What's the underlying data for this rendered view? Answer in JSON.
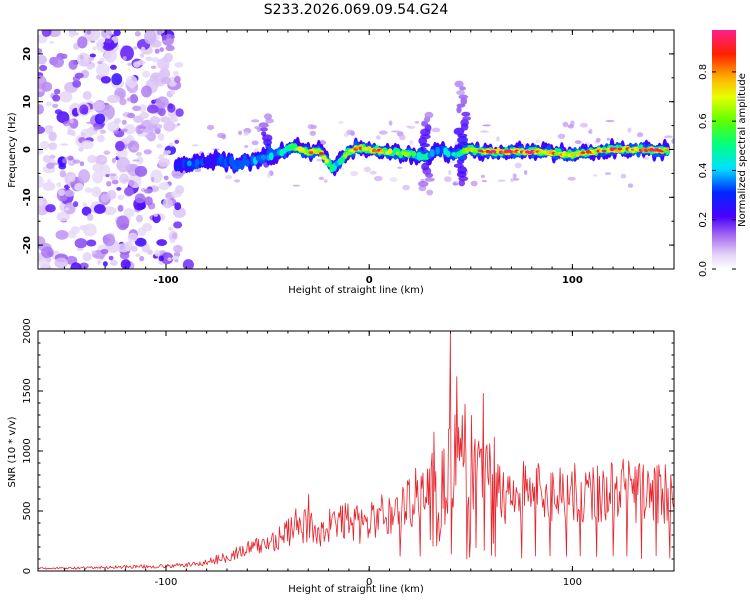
{
  "title": "S233.2026.069.09.54.G24",
  "chart_data": [
    {
      "type": "heatmap",
      "xlabel": "Height of straight line (km)",
      "ylabel": "Frequency (Hz)",
      "xlim": [
        -163,
        150
      ],
      "ylim": [
        -25,
        25
      ],
      "xticks": [
        "-100",
        "0",
        "100"
      ],
      "xtick_values": [
        -100,
        0,
        100
      ],
      "yticks": [
        "20",
        "10",
        "0",
        "-10",
        "-20"
      ],
      "ytick_values": [
        20,
        10,
        0,
        -10,
        -20
      ],
      "colorbar": {
        "label": "Normalized spectral amplitude",
        "range": [
          0,
          0.97
        ],
        "ticks": [
          "0.0",
          "0.2",
          "0.4",
          "0.6",
          "0.8"
        ],
        "tick_values": [
          0,
          0.2,
          0.4,
          0.6,
          0.8
        ]
      },
      "noise_region_x": [
        -163,
        -93
      ],
      "signal_band": [
        {
          "x": -95,
          "f": -3.5,
          "amp": 0.25
        },
        {
          "x": -85,
          "f": -3.0,
          "amp": 0.35
        },
        {
          "x": -75,
          "f": -2.0,
          "amp": 0.3
        },
        {
          "x": -65,
          "f": -3.0,
          "amp": 0.35
        },
        {
          "x": -55,
          "f": -2.0,
          "amp": 0.35
        },
        {
          "x": -45,
          "f": -1.0,
          "amp": 0.4
        },
        {
          "x": -38,
          "f": 0.5,
          "amp": 0.45
        },
        {
          "x": -30,
          "f": -0.5,
          "amp": 0.75
        },
        {
          "x": -24,
          "f": -0.5,
          "amp": 0.85
        },
        {
          "x": -18,
          "f": -4.0,
          "amp": 0.45
        },
        {
          "x": -10,
          "f": -0.5,
          "amp": 0.6
        },
        {
          "x": -5,
          "f": 0.5,
          "amp": 0.85
        },
        {
          "x": 0,
          "f": 0.0,
          "amp": 0.9
        },
        {
          "x": 10,
          "f": -0.5,
          "amp": 0.6
        },
        {
          "x": 20,
          "f": -1.0,
          "amp": 0.55
        },
        {
          "x": 28,
          "f": -1.5,
          "amp": 0.45
        },
        {
          "x": 35,
          "f": 0.0,
          "amp": 0.35
        },
        {
          "x": 42,
          "f": -1.0,
          "amp": 0.4
        },
        {
          "x": 50,
          "f": 0.0,
          "amp": 0.7
        },
        {
          "x": 60,
          "f": -0.5,
          "amp": 0.9
        },
        {
          "x": 70,
          "f": -0.5,
          "amp": 0.95
        },
        {
          "x": 80,
          "f": -0.5,
          "amp": 0.9
        },
        {
          "x": 88,
          "f": -0.5,
          "amp": 0.85
        },
        {
          "x": 95,
          "f": -1.0,
          "amp": 0.75
        },
        {
          "x": 102,
          "f": -1.0,
          "amp": 0.8
        },
        {
          "x": 110,
          "f": -0.5,
          "amp": 0.75
        },
        {
          "x": 118,
          "f": 0.0,
          "amp": 0.8
        },
        {
          "x": 126,
          "f": 0.0,
          "amp": 0.85
        },
        {
          "x": 135,
          "f": 0.0,
          "amp": 0.9
        },
        {
          "x": 142,
          "f": -0.2,
          "amp": 0.95
        },
        {
          "x": 148,
          "f": -0.2,
          "amp": 0.75
        }
      ],
      "vertical_features": [
        {
          "x": -50,
          "f_range": [
            -3,
            7
          ]
        },
        {
          "x": 28,
          "f_range": [
            -9,
            8
          ]
        },
        {
          "x": 46,
          "f_range": [
            -7,
            14
          ]
        }
      ]
    },
    {
      "type": "line",
      "xlabel": "Height of straight line (km)",
      "ylabel": "SNR (10 * v/v)",
      "xlim": [
        -163,
        150
      ],
      "ylim": [
        0,
        2000
      ],
      "xticks": [
        "-100",
        "0",
        "100"
      ],
      "xtick_values": [
        -100,
        0,
        100
      ],
      "yticks": [
        "0",
        "500",
        "1000",
        "1500",
        "2000"
      ],
      "ytick_values": [
        0,
        500,
        1000,
        1500,
        2000
      ],
      "series": [
        {
          "name": "SNR",
          "color": "#e8232b",
          "x": [
            -163,
            -140,
            -120,
            -100,
            -90,
            -80,
            -70,
            -60,
            -50,
            -45,
            -40,
            -35,
            -30,
            -25,
            -20,
            -15,
            -10,
            -5,
            0,
            5,
            10,
            15,
            20,
            25,
            30,
            35,
            40,
            45,
            50,
            55,
            60,
            65,
            70,
            80,
            90,
            100,
            110,
            120,
            130,
            140,
            150
          ],
          "values": [
            20,
            25,
            35,
            40,
            50,
            70,
            120,
            180,
            230,
            280,
            320,
            340,
            380,
            320,
            380,
            400,
            430,
            380,
            400,
            460,
            470,
            500,
            580,
            700,
            650,
            780,
            700,
            800,
            750,
            700,
            700,
            650,
            660,
            680,
            640,
            680,
            650,
            680,
            660,
            650,
            630
          ]
        }
      ],
      "peaks": [
        {
          "x": 40,
          "y": 2000
        },
        {
          "x": 43,
          "y": 1620
        },
        {
          "x": 47,
          "y": 1390
        },
        {
          "x": 56,
          "y": 1480
        },
        {
          "x": 36,
          "y": 1000
        },
        {
          "x": 52,
          "y": 1100
        },
        {
          "x": 58,
          "y": 1050
        },
        {
          "x": -30,
          "y": 640
        },
        {
          "x": -36,
          "y": 520
        },
        {
          "x": -48,
          "y": 300
        }
      ],
      "dips": [
        15,
        25,
        48,
        60,
        62,
        75,
        82,
        89,
        97,
        104,
        112,
        120,
        127,
        134,
        141,
        148
      ]
    }
  ]
}
